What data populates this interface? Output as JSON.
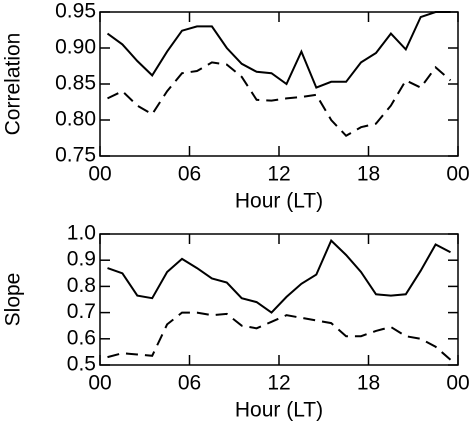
{
  "chart_data": [
    {
      "type": "line",
      "xlabel": "Hour (LT)",
      "ylabel": "Correlation",
      "x": [
        0.5,
        1.5,
        2.5,
        3.5,
        4.5,
        5.5,
        6.5,
        7.5,
        8.5,
        9.5,
        10.5,
        11.5,
        12.5,
        13.5,
        14.5,
        15.5,
        16.5,
        17.5,
        18.5,
        19.5,
        20.5,
        21.5,
        22.5,
        23.5
      ],
      "series": [
        {
          "color": "#000000",
          "linestyle": "solid",
          "values": [
            0.92,
            0.905,
            0.882,
            0.862,
            0.895,
            0.924,
            0.93,
            0.93,
            0.9,
            0.878,
            0.867,
            0.865,
            0.85,
            0.895,
            0.845,
            0.853,
            0.853,
            0.88,
            0.893,
            0.92,
            0.898,
            0.943,
            0.95,
            0.95
          ]
        },
        {
          "color": "#000000",
          "linestyle": "dashed",
          "values": [
            0.83,
            0.84,
            0.82,
            0.808,
            0.84,
            0.865,
            0.868,
            0.88,
            0.877,
            0.86,
            0.828,
            0.827,
            0.83,
            0.832,
            0.835,
            0.8,
            0.778,
            0.79,
            0.795,
            0.82,
            0.855,
            0.845,
            0.873,
            0.855
          ]
        }
      ],
      "xlim": [
        0,
        24
      ],
      "xticks": [
        {
          "value": 0,
          "label": "00"
        },
        {
          "value": 6,
          "label": "06"
        },
        12,
        18,
        {
          "value": 24,
          "label": "00"
        }
      ],
      "ylim": [
        0.75,
        0.95
      ],
      "yticks": [
        0.75,
        {
          "value": 0.8,
          "label": "0.80"
        },
        0.85,
        {
          "value": 0.9,
          "label": "0.90"
        },
        0.95
      ]
    },
    {
      "type": "line",
      "xlabel": "Hour (LT)",
      "ylabel": "Slope",
      "x": [
        0.5,
        1.5,
        2.5,
        3.5,
        4.5,
        5.5,
        6.5,
        7.5,
        8.5,
        9.5,
        10.5,
        11.5,
        12.5,
        13.5,
        14.5,
        15.5,
        16.5,
        17.5,
        18.5,
        19.5,
        20.5,
        21.5,
        22.5,
        23.5
      ],
      "series": [
        {
          "color": "#000000",
          "linestyle": "solid",
          "values": [
            0.87,
            0.85,
            0.765,
            0.755,
            0.855,
            0.905,
            0.87,
            0.83,
            0.815,
            0.755,
            0.74,
            0.7,
            0.76,
            0.81,
            0.845,
            0.975,
            0.92,
            0.855,
            0.77,
            0.765,
            0.77,
            0.86,
            0.96,
            0.93
          ]
        },
        {
          "color": "#000000",
          "linestyle": "dashed",
          "values": [
            0.53,
            0.545,
            0.54,
            0.535,
            0.655,
            0.7,
            0.7,
            0.69,
            0.695,
            0.65,
            0.64,
            0.665,
            0.69,
            0.68,
            0.67,
            0.66,
            0.61,
            0.61,
            0.63,
            0.645,
            0.61,
            0.6,
            0.57,
            0.52
          ]
        }
      ],
      "xlim": [
        0,
        24
      ],
      "xticks": [
        {
          "value": 0,
          "label": "00"
        },
        {
          "value": 6,
          "label": "06"
        },
        12,
        18,
        {
          "value": 24,
          "label": "00"
        }
      ],
      "ylim": [
        0.5,
        1.0
      ],
      "yticks": [
        0.5,
        0.6,
        0.7,
        0.8,
        0.9,
        {
          "value": 1,
          "label": "1.0"
        }
      ]
    }
  ]
}
